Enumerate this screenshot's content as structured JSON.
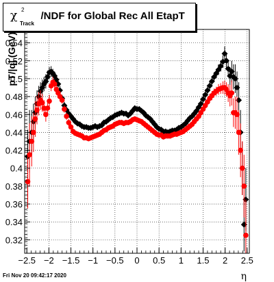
{
  "title": {
    "symbol": "χ",
    "superscript": "2",
    "subscript": "Track",
    "text": "/NDF for Global Rec All EtapT"
  },
  "timestamp": "Fri Nov 20 09:42:17 2020",
  "chart_data": {
    "type": "scatter",
    "xlabel": "η",
    "ylabel": "pT/|q| (GeV)",
    "xlim": [
      -2.55,
      2.55
    ],
    "ylim": [
      0.305,
      0.555
    ],
    "x_ticks": [
      -2.5,
      -2,
      -1.5,
      -1,
      -0.5,
      0,
      0.5,
      1,
      1.5,
      2,
      2.5
    ],
    "x_tick_labels": [
      "−2.5",
      "−2",
      "−1.5",
      "−1",
      "−0.5",
      "0",
      "0.5",
      "1",
      "1.5",
      "2",
      "2.5"
    ],
    "y_ticks": [
      0.32,
      0.34,
      0.36,
      0.38,
      0.4,
      0.42,
      0.44,
      0.46,
      0.48,
      0.5,
      0.52,
      0.54
    ],
    "y_tick_labels": [
      "0.32",
      "0.34",
      "0.36",
      "0.38",
      "0.4",
      "0.42",
      "0.44",
      "0.46",
      "0.48",
      "0.5",
      "0.52",
      "0.54"
    ],
    "grid": true,
    "series": [
      {
        "color": "#000000",
        "marker": "diamond",
        "x": [
          -2.48,
          -2.44,
          -2.39,
          -2.35,
          -2.31,
          -2.27,
          -2.23,
          -2.19,
          -2.15,
          -2.11,
          -2.07,
          -2.03,
          -1.99,
          -1.95,
          -1.91,
          -1.87,
          -1.83,
          -1.79,
          -1.75,
          -1.7,
          -1.65,
          -1.6,
          -1.55,
          -1.5,
          -1.45,
          -1.4,
          -1.35,
          -1.3,
          -1.25,
          -1.2,
          -1.15,
          -1.1,
          -1.05,
          -1.0,
          -0.95,
          -0.9,
          -0.85,
          -0.8,
          -0.75,
          -0.7,
          -0.65,
          -0.6,
          -0.55,
          -0.5,
          -0.45,
          -0.4,
          -0.35,
          -0.3,
          -0.25,
          -0.2,
          -0.15,
          -0.1,
          -0.05,
          0.0,
          0.05,
          0.1,
          0.15,
          0.2,
          0.25,
          0.3,
          0.35,
          0.4,
          0.45,
          0.5,
          0.55,
          0.6,
          0.65,
          0.7,
          0.75,
          0.8,
          0.85,
          0.9,
          0.95,
          1.0,
          1.05,
          1.1,
          1.15,
          1.2,
          1.25,
          1.3,
          1.35,
          1.4,
          1.45,
          1.5,
          1.55,
          1.6,
          1.65,
          1.7,
          1.75,
          1.8,
          1.85,
          1.9,
          1.95,
          1.99,
          2.03,
          2.07,
          2.11,
          2.15,
          2.19,
          2.23,
          2.27,
          2.31,
          2.35,
          2.39,
          2.43,
          2.47
        ],
        "y": [
          0.413,
          0.43,
          0.44,
          0.452,
          0.462,
          0.472,
          0.48,
          0.486,
          0.49,
          0.494,
          0.497,
          0.502,
          0.507,
          0.508,
          0.506,
          0.503,
          0.499,
          0.494,
          0.487,
          0.478,
          0.47,
          0.465,
          0.461,
          0.458,
          0.455,
          0.452,
          0.45,
          0.449,
          0.447,
          0.446,
          0.446,
          0.445,
          0.445,
          0.446,
          0.447,
          0.446,
          0.447,
          0.448,
          0.451,
          0.452,
          0.454,
          0.456,
          0.457,
          0.459,
          0.46,
          0.461,
          0.462,
          0.461,
          0.461,
          0.459,
          0.461,
          0.464,
          0.467,
          0.466,
          0.466,
          0.464,
          0.462,
          0.459,
          0.457,
          0.455,
          0.452,
          0.449,
          0.446,
          0.444,
          0.443,
          0.441,
          0.441,
          0.44,
          0.441,
          0.442,
          0.442,
          0.443,
          0.445,
          0.446,
          0.448,
          0.45,
          0.453,
          0.456,
          0.458,
          0.461,
          0.464,
          0.468,
          0.472,
          0.477,
          0.482,
          0.487,
          0.492,
          0.497,
          0.502,
          0.506,
          0.51,
          0.514,
          0.519,
          0.528,
          0.52,
          0.511,
          0.503,
          0.508,
          0.502,
          0.5,
          0.49,
          0.476,
          0.44,
          0.4,
          0.337,
          0.365
        ],
        "err": [
          0.03,
          0.035,
          0.025,
          0.02,
          0.018,
          0.015,
          0.012,
          0.01,
          0.009,
          0.008,
          0.008,
          0.007,
          0.006,
          0.006,
          0.005,
          0.005,
          0.005,
          0.005,
          0.005,
          0.004,
          0.004,
          0.004,
          0.004,
          0.003,
          0.003,
          0.003,
          0.003,
          0.003,
          0.003,
          0.003,
          0.003,
          0.003,
          0.003,
          0.003,
          0.003,
          0.003,
          0.003,
          0.003,
          0.003,
          0.003,
          0.003,
          0.003,
          0.003,
          0.003,
          0.003,
          0.003,
          0.003,
          0.003,
          0.003,
          0.003,
          0.003,
          0.003,
          0.003,
          0.003,
          0.003,
          0.003,
          0.003,
          0.003,
          0.003,
          0.003,
          0.003,
          0.003,
          0.003,
          0.003,
          0.003,
          0.003,
          0.003,
          0.003,
          0.003,
          0.003,
          0.003,
          0.003,
          0.003,
          0.003,
          0.003,
          0.003,
          0.003,
          0.003,
          0.003,
          0.003,
          0.003,
          0.004,
          0.004,
          0.004,
          0.004,
          0.004,
          0.005,
          0.005,
          0.005,
          0.005,
          0.006,
          0.006,
          0.007,
          0.008,
          0.008,
          0.009,
          0.01,
          0.012,
          0.014,
          0.016,
          0.018,
          0.02,
          0.025,
          0.03,
          0.03,
          0.035
        ]
      },
      {
        "color": "#ff0000",
        "marker": "circle",
        "x": [
          -2.48,
          -2.44,
          -2.39,
          -2.35,
          -2.31,
          -2.27,
          -2.23,
          -2.19,
          -2.15,
          -2.11,
          -2.07,
          -2.03,
          -1.99,
          -1.95,
          -1.91,
          -1.87,
          -1.83,
          -1.79,
          -1.75,
          -1.7,
          -1.65,
          -1.6,
          -1.55,
          -1.5,
          -1.45,
          -1.4,
          -1.35,
          -1.3,
          -1.25,
          -1.2,
          -1.15,
          -1.1,
          -1.05,
          -1.0,
          -0.95,
          -0.9,
          -0.85,
          -0.8,
          -0.75,
          -0.7,
          -0.65,
          -0.6,
          -0.55,
          -0.5,
          -0.45,
          -0.4,
          -0.35,
          -0.3,
          -0.25,
          -0.2,
          -0.15,
          -0.1,
          -0.05,
          0.0,
          0.05,
          0.1,
          0.15,
          0.2,
          0.25,
          0.3,
          0.35,
          0.4,
          0.45,
          0.5,
          0.55,
          0.6,
          0.65,
          0.7,
          0.75,
          0.8,
          0.85,
          0.9,
          0.95,
          1.0,
          1.05,
          1.1,
          1.15,
          1.2,
          1.25,
          1.3,
          1.35,
          1.4,
          1.45,
          1.5,
          1.55,
          1.6,
          1.65,
          1.7,
          1.75,
          1.8,
          1.85,
          1.9,
          1.95,
          1.99,
          2.03,
          2.07,
          2.11,
          2.15,
          2.19,
          2.23,
          2.27,
          2.31,
          2.35,
          2.39,
          2.43,
          2.47
        ],
        "y": [
          0.385,
          0.415,
          0.43,
          0.44,
          0.455,
          0.465,
          0.472,
          0.476,
          0.473,
          0.467,
          0.46,
          0.467,
          0.475,
          0.492,
          0.496,
          0.494,
          0.488,
          0.484,
          0.48,
          0.476,
          0.466,
          0.458,
          0.451,
          0.446,
          0.441,
          0.439,
          0.438,
          0.437,
          0.436,
          0.434,
          0.434,
          0.433,
          0.434,
          0.435,
          0.436,
          0.437,
          0.438,
          0.44,
          0.442,
          0.443,
          0.445,
          0.446,
          0.447,
          0.449,
          0.45,
          0.451,
          0.451,
          0.45,
          0.451,
          0.451,
          0.452,
          0.454,
          0.455,
          0.454,
          0.453,
          0.452,
          0.45,
          0.448,
          0.446,
          0.444,
          0.442,
          0.44,
          0.438,
          0.437,
          0.437,
          0.435,
          0.436,
          0.436,
          0.436,
          0.437,
          0.438,
          0.438,
          0.439,
          0.44,
          0.441,
          0.443,
          0.445,
          0.447,
          0.449,
          0.452,
          0.455,
          0.458,
          0.462,
          0.466,
          0.47,
          0.474,
          0.478,
          0.481,
          0.484,
          0.486,
          0.488,
          0.489,
          0.49,
          0.49,
          0.488,
          0.484,
          0.481,
          0.484,
          0.462,
          0.462,
          0.46,
          0.44,
          0.42,
          0.4,
          0.38,
          0.325
        ],
        "err": [
          0.03,
          0.035,
          0.028,
          0.022,
          0.02,
          0.016,
          0.013,
          0.011,
          0.01,
          0.009,
          0.008,
          0.007,
          0.007,
          0.006,
          0.006,
          0.005,
          0.005,
          0.005,
          0.005,
          0.004,
          0.004,
          0.004,
          0.004,
          0.003,
          0.003,
          0.003,
          0.003,
          0.003,
          0.003,
          0.003,
          0.003,
          0.003,
          0.003,
          0.003,
          0.003,
          0.003,
          0.003,
          0.003,
          0.003,
          0.003,
          0.003,
          0.003,
          0.003,
          0.003,
          0.003,
          0.003,
          0.003,
          0.003,
          0.003,
          0.003,
          0.003,
          0.003,
          0.003,
          0.003,
          0.003,
          0.003,
          0.003,
          0.003,
          0.003,
          0.003,
          0.003,
          0.003,
          0.003,
          0.003,
          0.003,
          0.003,
          0.003,
          0.003,
          0.003,
          0.003,
          0.003,
          0.003,
          0.003,
          0.003,
          0.003,
          0.003,
          0.003,
          0.003,
          0.003,
          0.003,
          0.003,
          0.004,
          0.004,
          0.004,
          0.004,
          0.004,
          0.005,
          0.005,
          0.005,
          0.005,
          0.006,
          0.006,
          0.007,
          0.008,
          0.008,
          0.01,
          0.012,
          0.014,
          0.016,
          0.018,
          0.02,
          0.025,
          0.03,
          0.03,
          0.035,
          0.04
        ]
      }
    ]
  }
}
